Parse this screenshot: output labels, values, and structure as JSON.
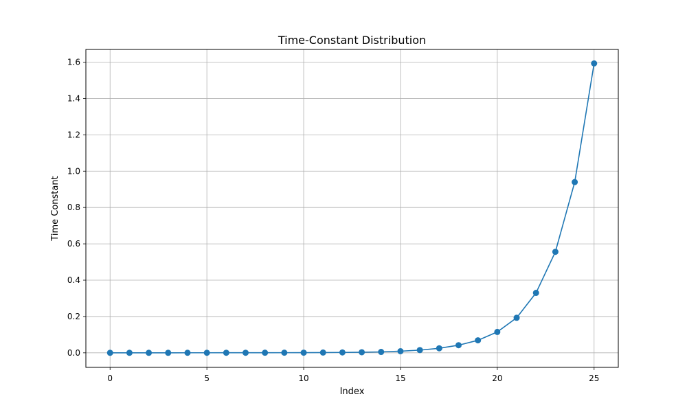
{
  "chart_data": {
    "type": "line",
    "title": "Time-Constant Distribution",
    "xlabel": "Index",
    "ylabel": "Time Constant",
    "xlim": [
      -1.25,
      26.25
    ],
    "ylim": [
      -0.08,
      1.67
    ],
    "x_ticks": [
      0,
      5,
      10,
      15,
      20,
      25
    ],
    "x_tick_labels": [
      "0",
      "5",
      "10",
      "15",
      "20",
      "25"
    ],
    "y_ticks": [
      0.0,
      0.2,
      0.4,
      0.6,
      0.8,
      1.0,
      1.2,
      1.4,
      1.6
    ],
    "y_tick_labels": [
      "0.0",
      "0.2",
      "0.4",
      "0.6",
      "0.8",
      "1.0",
      "1.2",
      "1.4",
      "1.6"
    ],
    "grid": true,
    "marker": "circle",
    "color": "#1f77b4",
    "series": [
      {
        "x": [
          0,
          1,
          2,
          3,
          4,
          5,
          6,
          7,
          8,
          9,
          10,
          11,
          12,
          13,
          14,
          15,
          16,
          17,
          18,
          19,
          20,
          21,
          22,
          23,
          24,
          25
        ],
        "values": [
          0.0001,
          0.0001,
          0.0002,
          0.0002,
          0.0003,
          0.0003,
          0.0004,
          0.0005,
          0.0006,
          0.0008,
          0.001,
          0.0015,
          0.0022,
          0.0033,
          0.005,
          0.009,
          0.015,
          0.025,
          0.042,
          0.069,
          0.115,
          0.193,
          0.33,
          0.556,
          0.94,
          1.593
        ]
      }
    ]
  }
}
